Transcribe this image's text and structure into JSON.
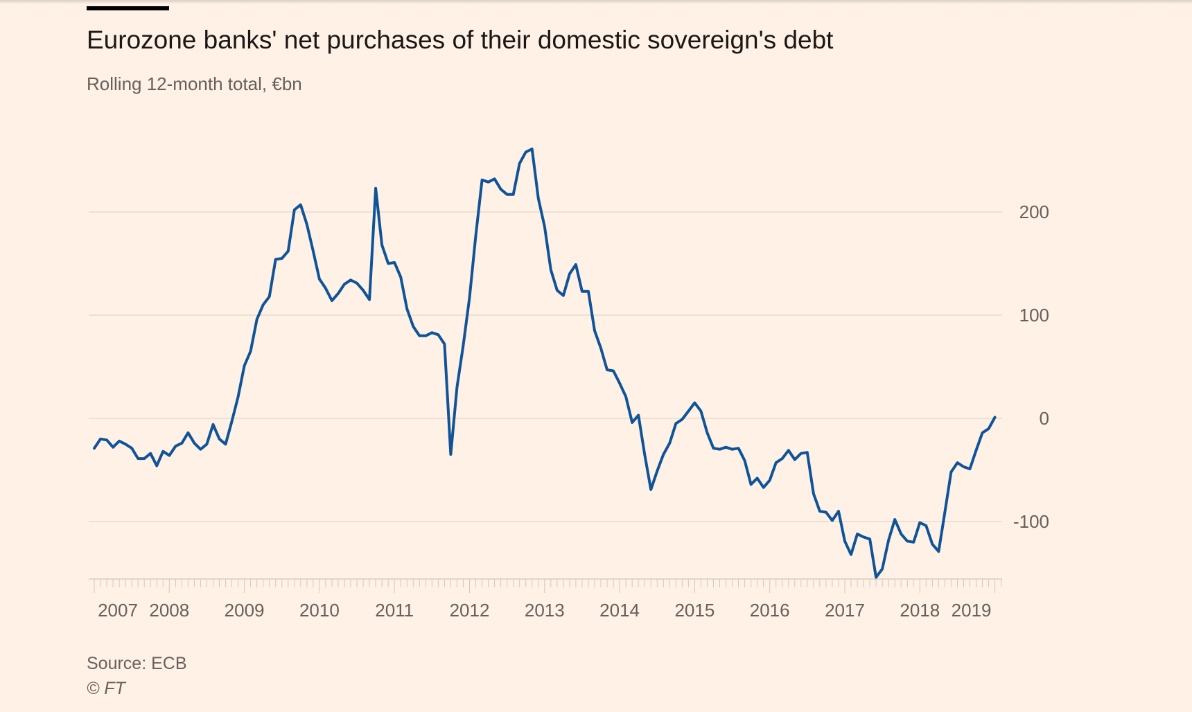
{
  "chart_data": {
    "type": "line",
    "title": "Eurozone banks' net purchases of their domestic sovereign's debt",
    "subtitle": "Rolling 12-month total, €bn",
    "xlabel": "",
    "ylabel": "",
    "x_start": "2007-01",
    "x_frequency": "monthly",
    "ylim": [
      -155,
      265
    ],
    "yticks": [
      200,
      100,
      0,
      -100
    ],
    "ytick_labels": [
      "200",
      "100",
      "0",
      "-100"
    ],
    "xticks": [
      2007,
      2008,
      2009,
      2010,
      2011,
      2012,
      2013,
      2014,
      2015,
      2016,
      2017,
      2018,
      2019
    ],
    "xtick_labels": [
      "2007",
      "2008",
      "2009",
      "2010",
      "2011",
      "2012",
      "2013",
      "2014",
      "2015",
      "2016",
      "2017",
      "2018",
      "2019"
    ],
    "grid": true,
    "series": [
      {
        "name": "Net purchases",
        "color": "#0f5499",
        "values": [
          -29,
          -20,
          -21,
          -28,
          -22,
          -25,
          -29,
          -39,
          -39,
          -34,
          -46,
          -32,
          -36,
          -27,
          -24,
          -14,
          -24,
          -30,
          -25,
          -6,
          -20,
          -25,
          -3,
          21,
          51,
          65,
          96,
          110,
          118,
          154,
          155,
          162,
          202,
          207,
          188,
          162,
          135,
          126,
          114,
          121,
          130,
          134,
          131,
          124,
          115,
          223,
          168,
          150,
          151,
          137,
          106,
          89,
          80,
          80,
          83,
          81,
          72,
          -35,
          30,
          71,
          117,
          177,
          231,
          229,
          232,
          222,
          217,
          217,
          247,
          258,
          261,
          213,
          186,
          144,
          124,
          119,
          140,
          149,
          123,
          123,
          85,
          68,
          47,
          46,
          34,
          21,
          -4,
          3,
          -35,
          -69,
          -51,
          -35,
          -24,
          -5,
          -1,
          7,
          15,
          7,
          -14,
          -29,
          -30,
          -28,
          -30,
          -29,
          -41,
          -64,
          -58,
          -67,
          -60,
          -43,
          -39,
          -31,
          -40,
          -34,
          -33,
          -73,
          -90,
          -91,
          -99,
          -90,
          -119,
          -132,
          -112,
          -115,
          -117,
          -154,
          -146,
          -118,
          -98,
          -112,
          -119,
          -120,
          -101,
          -104,
          -122,
          -129,
          -91,
          -52,
          -43,
          -47,
          -49,
          -31,
          -14,
          -10,
          1
        ]
      }
    ]
  },
  "footer": {
    "source": "Source: ECB",
    "copyright": "© FT"
  }
}
